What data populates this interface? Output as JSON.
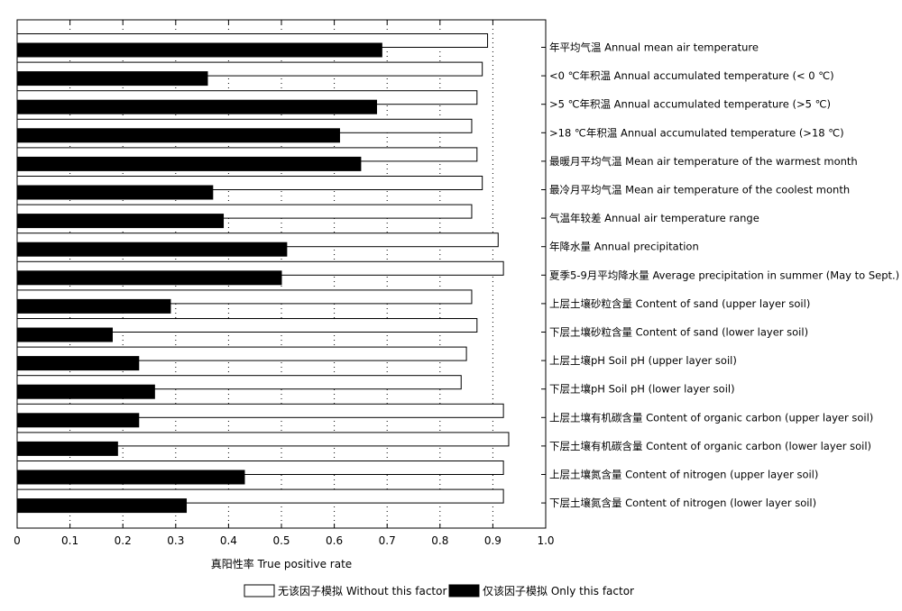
{
  "chart_data": {
    "type": "bar",
    "orientation": "horizontal",
    "categories": [
      "年平均气温 Annual mean air temperature",
      "<0 ℃年积温 Annual accumulated temperature (< 0 ℃)",
      ">5 ℃年积温 Annual accumulated temperature (>5 ℃)",
      ">18 ℃年积温 Annual accumulated temperature (>18 ℃)",
      "最暖月平均气温 Mean air temperature of the warmest month",
      "最冷月平均气温 Mean air temperature of the coolest month",
      "气温年较差 Annual air temperature range",
      "年降水量 Annual precipitation",
      "夏季5-9月平均降水量 Average precipitation in summer (May to Sept.)",
      "上层土壤砂粒含量 Content of sand (upper layer soil)",
      "下层土壤砂粒含量 Content of sand (lower layer soil)",
      "上层土壤pH  Soil pH (upper layer soil)",
      "下层土壤pH  Soil pH (lower layer soil)",
      "上层土壤有机碳含量 Content of organic carbon (upper layer soil)",
      "下层土壤有机碳含量 Content of organic carbon (lower layer soil)",
      "上层土壤氮含量 Content of nitrogen (upper layer soil)",
      "下层土壤氮含量 Content of nitrogen (lower layer soil)"
    ],
    "series": [
      {
        "name": "无该因子模拟 Without this factor",
        "color": "#ffffff",
        "values": [
          0.89,
          0.88,
          0.87,
          0.86,
          0.87,
          0.88,
          0.86,
          0.91,
          0.92,
          0.86,
          0.87,
          0.85,
          0.84,
          0.92,
          0.93,
          0.92,
          0.92
        ]
      },
      {
        "name": "仅该因子模拟 Only this factor",
        "color": "#000000",
        "values": [
          0.69,
          0.36,
          0.68,
          0.61,
          0.65,
          0.37,
          0.39,
          0.51,
          0.5,
          0.29,
          0.18,
          0.23,
          0.26,
          0.23,
          0.19,
          0.43,
          0.32
        ]
      }
    ],
    "xlabel": "真阳性率 True positive rate",
    "ylabel": "",
    "xlim": [
      0,
      1.0
    ],
    "xticks": [
      "0",
      "0.1",
      "0.2",
      "0.3",
      "0.4",
      "0.5",
      "0.6",
      "0.7",
      "0.8",
      "0.9",
      "1.0"
    ],
    "grid": "vertical dotted",
    "legend": "bottom"
  }
}
